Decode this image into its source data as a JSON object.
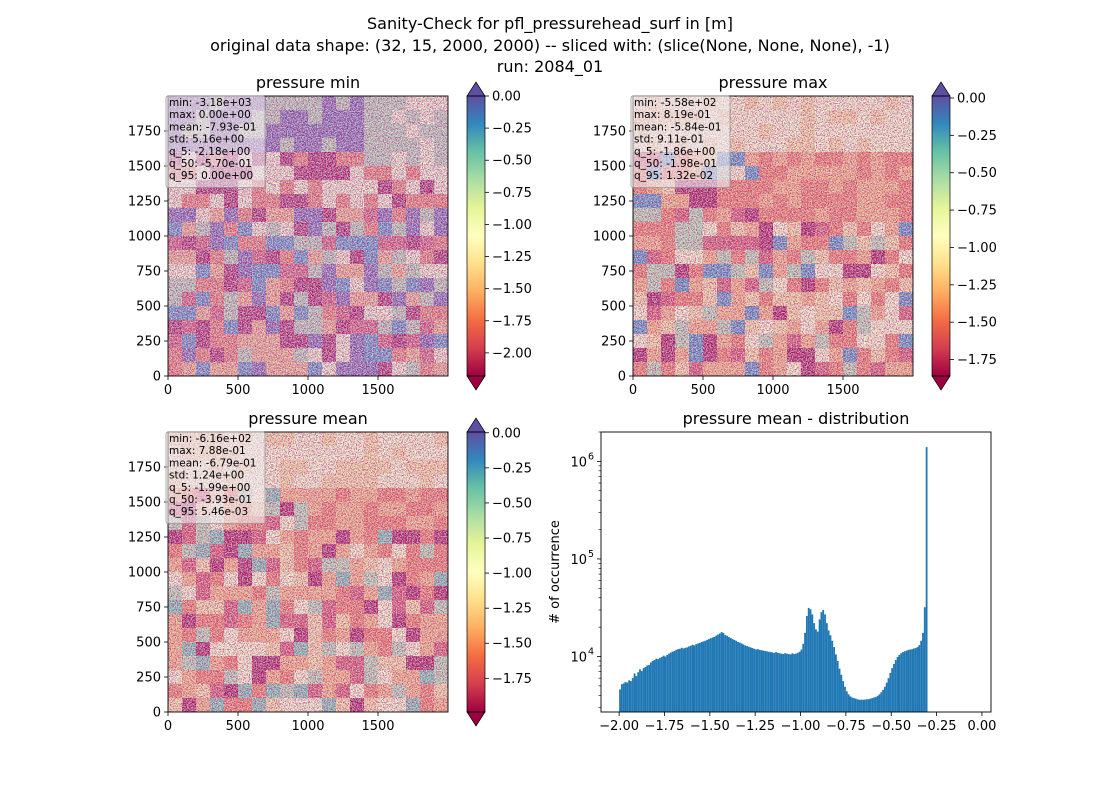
{
  "title_lines": [
    "Sanity-Check for pfl_pressurehead_surf in [m]",
    "original data shape: (32, 15, 2000, 2000) -- sliced with: (slice(None, None, None), -1)",
    "run: 2084_01"
  ],
  "colors": {
    "spectral": [
      "#9e0142",
      "#d53e4f",
      "#f46d43",
      "#fdae61",
      "#fee08b",
      "#ffffbf",
      "#e6f598",
      "#abdda4",
      "#66c2a5",
      "#3288bd",
      "#5e4fa2"
    ],
    "hist_bar": "#1f77b4"
  },
  "chart_data": [
    {
      "type": "heatmap",
      "title": "pressure min",
      "xlim": [
        0,
        2000
      ],
      "ylim": [
        0,
        2000
      ],
      "xticks": [
        "0",
        "500",
        "1000",
        "1500"
      ],
      "yticks": [
        "0",
        "250",
        "500",
        "750",
        "1000",
        "1250",
        "1500",
        "1750"
      ],
      "colorbar": {
        "vmin": -2.18,
        "vmax": 0.0,
        "ticks": [
          "0.00",
          "−0.25",
          "−0.50",
          "−0.75",
          "−1.00",
          "−1.25",
          "−1.50",
          "−1.75",
          "−2.00"
        ],
        "extend": "both"
      },
      "stats": [
        "min: -3.18e+03",
        "max: 0.00e+00",
        "mean: -7.93e-01",
        "std: 5.16e+00",
        "q_5: -2.18e+00",
        "q_50: -5.70e-01",
        "q_95: 0.00e+00"
      ]
    },
    {
      "type": "heatmap",
      "title": "pressure max",
      "xlim": [
        0,
        2000
      ],
      "ylim": [
        0,
        2000
      ],
      "xticks": [
        "0",
        "500",
        "1000",
        "1500"
      ],
      "yticks": [
        "0",
        "250",
        "500",
        "750",
        "1000",
        "1250",
        "1500",
        "1750"
      ],
      "colorbar": {
        "vmin": -1.86,
        "vmax": 0.0132,
        "ticks": [
          "0.00",
          "−0.25",
          "−0.50",
          "−0.75",
          "−1.00",
          "−1.25",
          "−1.50",
          "−1.75"
        ],
        "extend": "both"
      },
      "stats": [
        "min: -5.58e+02",
        "max: 8.19e-01",
        "mean: -5.84e-01",
        "std: 9.11e-01",
        "q_5: -1.86e+00",
        "q_50: -1.98e-01",
        "q_95: 1.32e-02"
      ]
    },
    {
      "type": "heatmap",
      "title": "pressure mean",
      "xlim": [
        0,
        2000
      ],
      "ylim": [
        0,
        2000
      ],
      "xticks": [
        "0",
        "500",
        "1000",
        "1500"
      ],
      "yticks": [
        "0",
        "250",
        "500",
        "750",
        "1000",
        "1250",
        "1500",
        "1750"
      ],
      "colorbar": {
        "vmin": -1.99,
        "vmax": 0.00546,
        "ticks": [
          "0.00",
          "−0.25",
          "−0.50",
          "−0.75",
          "−1.00",
          "−1.25",
          "−1.50",
          "−1.75"
        ],
        "extend": "both"
      },
      "stats": [
        "min: -6.16e+02",
        "max: 7.88e-01",
        "mean: -6.79e-01",
        "std: 1.24e+00",
        "q_5: -1.99e+00",
        "q_50: -3.93e-01",
        "q_95: 5.46e-03"
      ]
    },
    {
      "type": "bar",
      "title": "pressure mean - distribution",
      "ylabel": "# of occurrence",
      "xlim": [
        -2.1,
        0.05
      ],
      "ylog": true,
      "ylim": [
        2700,
        2000000
      ],
      "xticks": [
        {
          "value": -2.0,
          "label": "−2.00"
        },
        {
          "value": -1.75,
          "label": "−1.75"
        },
        {
          "value": -1.5,
          "label": "−1.50"
        },
        {
          "value": -1.25,
          "label": "−1.25"
        },
        {
          "value": -1.0,
          "label": "−1.00"
        },
        {
          "value": -0.75,
          "label": "−0.75"
        },
        {
          "value": -0.5,
          "label": "−0.50"
        },
        {
          "value": -0.25,
          "label": "−0.25"
        },
        {
          "value": 0.0,
          "label": "0.00"
        }
      ],
      "yticks": [
        {
          "value": 10000,
          "base": "10",
          "exp": "4"
        },
        {
          "value": 100000,
          "base": "10",
          "exp": "5"
        },
        {
          "value": 1000000,
          "base": "10",
          "exp": "6"
        }
      ],
      "bin_start": -2.0,
      "bin_width": 0.01,
      "values": [
        4600,
        5200,
        5300,
        5500,
        5400,
        5700,
        5600,
        6000,
        6700,
        6300,
        6900,
        7400,
        7100,
        7600,
        7800,
        8100,
        8200,
        8700,
        9000,
        9200,
        9500,
        9400,
        9700,
        9900,
        10200,
        10000,
        10400,
        10700,
        11000,
        11200,
        11400,
        11700,
        11900,
        12000,
        12300,
        12100,
        12300,
        12400,
        12700,
        12900,
        13200,
        13000,
        13400,
        13600,
        13800,
        14100,
        14300,
        14500,
        14800,
        15100,
        15400,
        15700,
        15900,
        16400,
        16800,
        17200,
        17800,
        17400,
        16600,
        16300,
        15800,
        15500,
        15100,
        14800,
        14500,
        14100,
        13900,
        13600,
        13300,
        13000,
        12800,
        12600,
        12400,
        12200,
        12000,
        11800,
        11900,
        11700,
        11600,
        11500,
        11400,
        11300,
        11200,
        11100,
        11000,
        10900,
        11100,
        10900,
        10800,
        10700,
        10600,
        10800,
        10700,
        10600,
        10500,
        10800,
        10600,
        10700,
        10900,
        11200,
        11800,
        13500,
        17500,
        26000,
        31500,
        30500,
        27000,
        22000,
        19000,
        18000,
        24000,
        28500,
        30000,
        27000,
        22000,
        18500,
        16500,
        14500,
        12500,
        10500,
        9000,
        7500,
        6500,
        5600,
        4900,
        4400,
        4100,
        3900,
        3800,
        3750,
        3700,
        3650,
        3600,
        3620,
        3600,
        3620,
        3650,
        3650,
        3700,
        3750,
        3800,
        3850,
        3950,
        4100,
        4300,
        4550,
        4900,
        5400,
        6000,
        6800,
        7600,
        8400,
        9200,
        9900,
        10400,
        10800,
        11100,
        11300,
        11500,
        11700,
        11800,
        11900,
        12100,
        12200,
        12500,
        13100,
        14500,
        17500,
        32000,
        1400000
      ]
    }
  ]
}
